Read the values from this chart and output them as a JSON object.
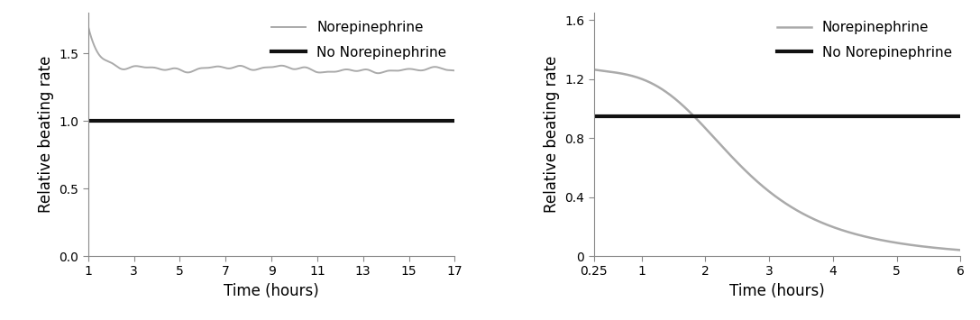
{
  "left_chart": {
    "xlim": [
      1,
      17
    ],
    "ylim": [
      0,
      1.8
    ],
    "xticks": [
      1,
      3,
      5,
      7,
      9,
      11,
      13,
      15,
      17
    ],
    "yticks": [
      0,
      0.5,
      1.0,
      1.5
    ],
    "xlabel": "Time (hours)",
    "ylabel": "Relative beating rate",
    "norepi_start_val": 1.68,
    "norepi_fast_decay_tau": 0.6,
    "norepi_slow_level": 1.4,
    "norepi_slow_end": 1.38,
    "no_norepi_val": 1.0,
    "legend_norepi": "Norepinephrine",
    "legend_no_norepi": "No Norepinephrine",
    "color_norepi": "#aaaaaa",
    "color_no_norepi": "#111111",
    "lw_norepi": 1.4,
    "lw_no_norepi": 3.0
  },
  "right_chart": {
    "xlim": [
      0.25,
      6
    ],
    "ylim": [
      0,
      1.65
    ],
    "xticks": [
      0.25,
      1,
      2,
      3,
      4,
      5,
      6
    ],
    "ytick_vals": [
      0,
      0.4,
      0.8,
      1.2,
      1.6
    ],
    "ytick_labels": [
      "0",
      "0.4",
      "0.8",
      "1.2",
      "1.6"
    ],
    "xlabel": "Time (hours)",
    "ylabel": "Relative beating rate",
    "no_norepi_val": 0.95,
    "norepi_start_val": 1.25,
    "legend_norepi": "Norepinephrine",
    "legend_no_norepi": "No Norepinephrine",
    "color_norepi": "#aaaaaa",
    "color_no_norepi": "#111111",
    "lw_norepi": 1.8,
    "lw_no_norepi": 3.0
  },
  "font_size_labels": 12,
  "font_size_ticks": 10,
  "font_size_legend": 11,
  "background_color": "#ffffff"
}
